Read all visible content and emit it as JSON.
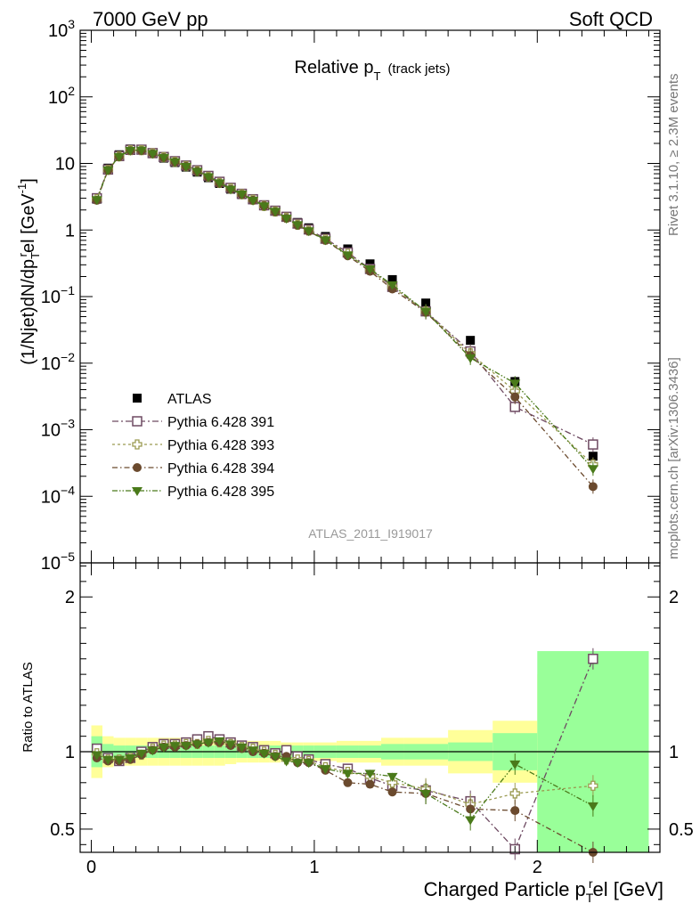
{
  "header": {
    "left": "7000 GeV pp",
    "right": "Soft QCD"
  },
  "side": {
    "rivet": "Rivet 3.1.10, ≥ 2.3M events",
    "mcplots": "mcplots.cern.ch [arXiv:1306.3436]"
  },
  "chart_data": {
    "type": "scatter",
    "title_main": "Relative p",
    "title_sub": "T",
    "title_note": "(track jets)",
    "analysis_label": "ATLAS_2011_I919017",
    "xlabel": "Charged Particle p",
    "xlabel_sub": "T",
    "xlabel_sup": "r",
    "xlabel_tail": "el [GeV]",
    "ylabel": "(1/Njet)dN/dp",
    "ylabel_sub": "T",
    "ylabel_sup": "r",
    "ylabel_tail": "el [GeV",
    "ylabel_unit_sup": "-1",
    "ylabel_close": "]",
    "ratio_ylabel": "Ratio to ATLAS",
    "xlim": [
      -0.05,
      2.55
    ],
    "ylim_log": [
      1e-05,
      1000
    ],
    "ratio_ylim": [
      0.35,
      2.22
    ],
    "x_ticks": [
      "0",
      "1",
      "2"
    ],
    "y_ticks": [
      {
        "base": "10",
        "exp": "3"
      },
      {
        "base": "10",
        "exp": "2"
      },
      {
        "base": "10",
        "exp": ""
      },
      {
        "base": "1",
        "exp": ""
      },
      {
        "base": "10",
        "exp": "−1"
      },
      {
        "base": "10",
        "exp": "−2"
      },
      {
        "base": "10",
        "exp": "−3"
      },
      {
        "base": "10",
        "exp": "−4"
      },
      {
        "base": "10",
        "exp": "−5"
      }
    ],
    "ratio_ticks": [
      "2",
      "1",
      "0.5"
    ],
    "x": [
      0.025,
      0.075,
      0.125,
      0.175,
      0.225,
      0.275,
      0.325,
      0.375,
      0.425,
      0.475,
      0.525,
      0.575,
      0.625,
      0.675,
      0.725,
      0.775,
      0.825,
      0.875,
      0.925,
      0.975,
      1.05,
      1.15,
      1.25,
      1.35,
      1.5,
      1.7,
      1.9,
      2.25
    ],
    "band_edges": [
      0,
      0.05,
      0.1,
      0.15,
      0.2,
      0.25,
      0.3,
      0.35,
      0.4,
      0.45,
      0.5,
      0.55,
      0.6,
      0.65,
      0.7,
      0.75,
      0.8,
      0.85,
      0.9,
      0.95,
      1.0,
      1.1,
      1.2,
      1.3,
      1.4,
      1.6,
      1.8,
      2.0,
      2.5
    ],
    "band_inner": [
      0.1,
      0.05,
      0.04,
      0.04,
      0.04,
      0.04,
      0.04,
      0.04,
      0.04,
      0.04,
      0.04,
      0.04,
      0.04,
      0.04,
      0.04,
      0.04,
      0.04,
      0.04,
      0.04,
      0.04,
      0.04,
      0.04,
      0.04,
      0.05,
      0.05,
      0.06,
      0.12,
      0.65
    ],
    "band_outer": [
      0.17,
      0.1,
      0.09,
      0.09,
      0.09,
      0.09,
      0.09,
      0.09,
      0.09,
      0.09,
      0.09,
      0.09,
      0.08,
      0.07,
      0.07,
      0.07,
      0.07,
      0.06,
      0.06,
      0.06,
      0.06,
      0.07,
      0.07,
      0.09,
      0.09,
      0.14,
      0.2,
      0.5
    ],
    "series": [
      {
        "name": "ATLAS",
        "color": "#000000",
        "marker": "square-filled",
        "values": [
          2.9,
          8.5,
          13.5,
          16.5,
          16.0,
          14.0,
          12.0,
          10.3,
          8.8,
          7.4,
          6.1,
          5.0,
          4.1,
          3.4,
          2.85,
          2.35,
          1.95,
          1.6,
          1.3,
          1.08,
          0.8,
          0.52,
          0.31,
          0.18,
          0.08,
          0.022,
          0.0053,
          0.0004
        ],
        "ratio": []
      },
      {
        "name": "Pythia 6.428 391",
        "color": "#6e4a62",
        "marker": "square-open",
        "values": [
          3.0,
          8.1,
          12.9,
          16.0,
          16.1,
          14.3,
          12.5,
          10.8,
          9.3,
          7.9,
          6.5,
          5.3,
          4.3,
          3.5,
          2.9,
          2.35,
          1.95,
          1.58,
          1.25,
          1.02,
          0.74,
          0.46,
          0.26,
          0.14,
          0.06,
          0.015,
          0.0022,
          0.0006
        ],
        "ratio": [
          1.02,
          0.96,
          0.94,
          0.96,
          1.0,
          1.03,
          1.05,
          1.05,
          1.06,
          1.08,
          1.1,
          1.08,
          1.06,
          1.04,
          1.03,
          1.01,
          0.99,
          1.01,
          0.97,
          0.95,
          0.92,
          0.89,
          0.83,
          0.78,
          0.75,
          0.68,
          0.37,
          1.6
        ]
      },
      {
        "name": "Pythia 6.428 393",
        "color": "#9a9a50",
        "marker": "cross-open",
        "values": [
          2.9,
          8.0,
          12.8,
          15.8,
          15.8,
          14.2,
          12.4,
          10.6,
          9.1,
          7.7,
          6.3,
          5.1,
          4.2,
          3.45,
          2.85,
          2.3,
          1.9,
          1.53,
          1.2,
          0.98,
          0.72,
          0.44,
          0.25,
          0.14,
          0.06,
          0.014,
          0.0038,
          0.0003
        ],
        "ratio": [
          0.99,
          0.95,
          0.95,
          0.96,
          0.98,
          1.02,
          1.04,
          1.04,
          1.05,
          1.05,
          1.07,
          1.06,
          1.05,
          1.03,
          1.02,
          1.0,
          0.98,
          0.95,
          0.95,
          0.94,
          0.9,
          0.87,
          0.84,
          0.8,
          0.76,
          0.66,
          0.73,
          0.78
        ]
      },
      {
        "name": "Pythia 6.428 394",
        "color": "#6b4a2e",
        "marker": "circle-filled",
        "values": [
          2.8,
          7.9,
          12.6,
          15.6,
          15.6,
          14.0,
          12.2,
          10.5,
          9.0,
          7.6,
          6.2,
          5.0,
          4.1,
          3.4,
          2.8,
          2.3,
          1.88,
          1.5,
          1.18,
          0.96,
          0.7,
          0.41,
          0.24,
          0.13,
          0.058,
          0.013,
          0.0031,
          0.00014
        ],
        "ratio": [
          0.96,
          0.94,
          0.94,
          0.95,
          0.98,
          1.01,
          1.03,
          1.03,
          1.04,
          1.05,
          1.06,
          1.06,
          1.04,
          1.02,
          1.0,
          0.99,
          0.97,
          0.97,
          0.93,
          0.93,
          0.88,
          0.8,
          0.79,
          0.74,
          0.73,
          0.63,
          0.62,
          0.35
        ]
      },
      {
        "name": "Pythia 6.428 395",
        "color": "#4a7a1a",
        "marker": "triangle-down-filled",
        "values": [
          2.85,
          8.0,
          12.7,
          15.7,
          15.8,
          14.1,
          12.3,
          10.6,
          9.0,
          7.6,
          6.3,
          5.1,
          4.1,
          3.45,
          2.8,
          2.3,
          1.9,
          1.5,
          1.2,
          0.97,
          0.71,
          0.42,
          0.26,
          0.15,
          0.06,
          0.012,
          0.005,
          0.00026
        ],
        "ratio": [
          0.98,
          0.95,
          0.95,
          0.96,
          0.99,
          1.01,
          1.03,
          1.04,
          1.04,
          1.05,
          1.06,
          1.07,
          1.05,
          1.03,
          1.01,
          0.99,
          0.97,
          0.94,
          0.93,
          0.93,
          0.89,
          0.86,
          0.86,
          0.84,
          0.73,
          0.56,
          0.92,
          0.65
        ]
      }
    ]
  }
}
